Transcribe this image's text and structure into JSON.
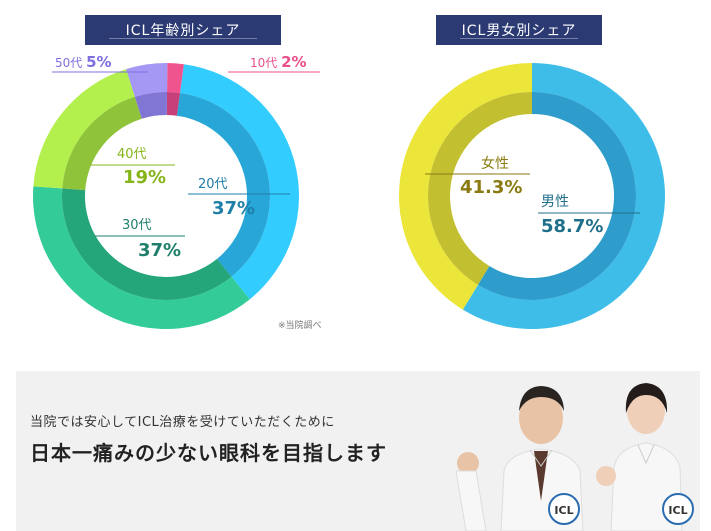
{
  "chart_data": [
    {
      "type": "pie",
      "title": "ICL年齢別シェア",
      "slices": [
        {
          "label": "10代",
          "value": 2,
          "value_text": "2%",
          "color": "#f0548e",
          "inner_color": "#c7407a"
        },
        {
          "label": "20代",
          "value": 37,
          "value_text": "37%",
          "color": "#33ccff",
          "inner_color": "#27a6d7"
        },
        {
          "label": "30代",
          "value": 37,
          "value_text": "37%",
          "color": "#33cc99",
          "inner_color": "#24a57a"
        },
        {
          "label": "40代",
          "value": 19,
          "value_text": "19%",
          "color": "#b3f04d",
          "inner_color": "#8fc33a"
        },
        {
          "label": "50代",
          "value": 5,
          "value_text": "5%",
          "color": "#a598f5",
          "inner_color": "#8276d5"
        }
      ],
      "label_colors": {
        "10代": "#e8508c",
        "20代": "#1f7fa8",
        "30代": "#1f7f6a",
        "40代": "#86b51a",
        "50代": "#7d6fe0"
      }
    },
    {
      "type": "pie",
      "title": "ICL男女別シェア",
      "slices": [
        {
          "label": "男性",
          "value": 58.7,
          "value_text": "58.7%",
          "color": "#3dbde8",
          "inner_color": "#2e9dcc"
        },
        {
          "label": "女性",
          "value": 41.3,
          "value_text": "41.3%",
          "color": "#ece63b",
          "inner_color": "#c2bf30"
        }
      ],
      "label_colors": {
        "男性": "#1f6f8a",
        "女性": "#8a7a10"
      }
    }
  ],
  "note": "※当院調べ",
  "banner": {
    "subtitle": "当院では安心してICL治療を受けていただくために",
    "headline": "日本一痛みの少ない眼科を目指します",
    "badge_text": "ICL"
  }
}
